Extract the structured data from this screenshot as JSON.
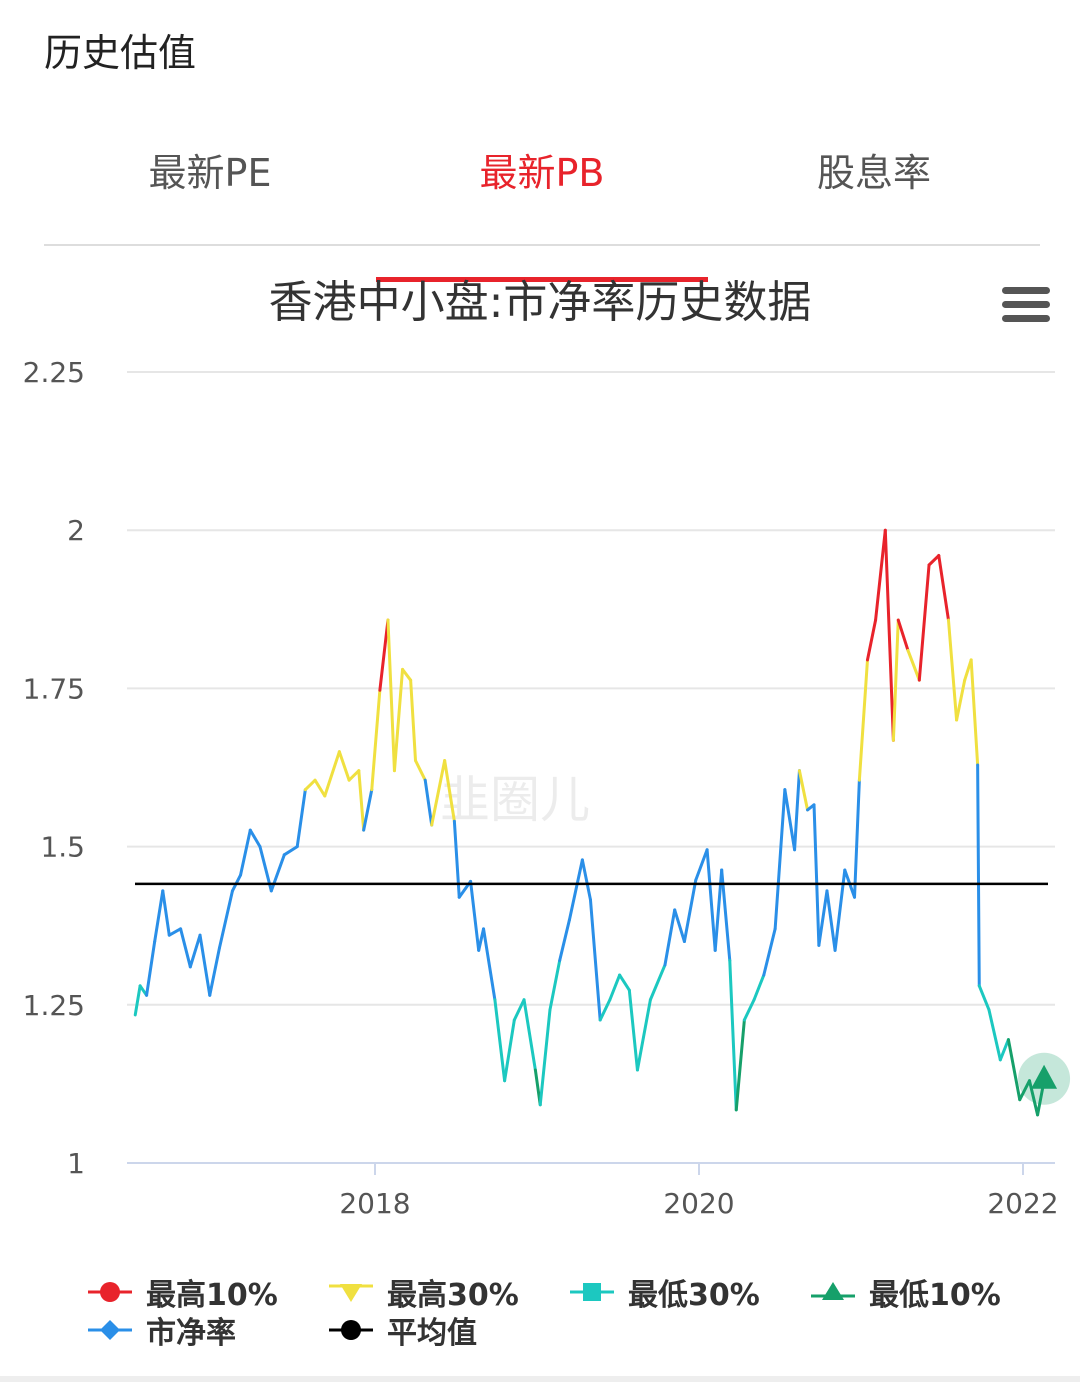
{
  "header": {
    "title": "历史估值"
  },
  "tabs": [
    {
      "label": "最新PE"
    },
    {
      "label": "最新PB",
      "active": true
    },
    {
      "label": "股息率"
    }
  ],
  "watermark": "韭圈儿",
  "colors": {
    "accent": "#e8232b",
    "top10": "#e8232b",
    "top30": "#f0e040",
    "low30": "#1cc8c0",
    "low10": "#16a06a",
    "pb": "#2a8fe8",
    "avg": "#000000"
  },
  "chart_data": {
    "type": "line",
    "title": "香港中小盘:市净率历史数据",
    "ylim": [
      1,
      2.25
    ],
    "yticks": [
      "1",
      "1.25",
      "1.5",
      "1.75",
      "2",
      "2.25"
    ],
    "xlim": [
      2016.45,
      2022.2
    ],
    "xticks": [
      "2018",
      "2020",
      "2022"
    ],
    "average": 1.441,
    "thresholds": {
      "top10": 1.79,
      "top30": 1.57,
      "low30": 1.29,
      "low10": 1.16
    },
    "legend": [
      {
        "label": "最高10%",
        "marker": "circle",
        "color": "#e8232b"
      },
      {
        "label": "最高30%",
        "marker": "triangle-down",
        "color": "#f0e040"
      },
      {
        "label": "最低30%",
        "marker": "square",
        "color": "#1cc8c0"
      },
      {
        "label": "最低10%",
        "marker": "triangle",
        "color": "#16a06a"
      },
      {
        "label": "市净率",
        "marker": "diamond",
        "color": "#2a8fe8"
      },
      {
        "label": "平均值",
        "marker": "circle",
        "color": "#000000"
      }
    ],
    "x": [
      2016.52,
      2016.55,
      2016.59,
      2016.64,
      2016.69,
      2016.73,
      2016.8,
      2016.86,
      2016.92,
      2016.98,
      2017.04,
      2017.12,
      2017.17,
      2017.23,
      2017.29,
      2017.36,
      2017.44,
      2017.52,
      2017.57,
      2017.63,
      2017.69,
      2017.78,
      2017.84,
      2017.9,
      2017.93,
      2017.98,
      2018.03,
      2018.08,
      2018.12,
      2018.17,
      2018.22,
      2018.25,
      2018.31,
      2018.35,
      2018.43,
      2018.49,
      2018.52,
      2018.59,
      2018.64,
      2018.67,
      2018.74,
      2018.8,
      2018.86,
      2018.92,
      2018.99,
      2019.02,
      2019.08,
      2019.14,
      2019.2,
      2019.28,
      2019.33,
      2019.39,
      2019.45,
      2019.51,
      2019.57,
      2019.62,
      2019.7,
      2019.79,
      2019.85,
      2019.91,
      2019.98,
      2020.05,
      2020.1,
      2020.14,
      2020.19,
      2020.23,
      2020.28,
      2020.34,
      2020.4,
      2020.47,
      2020.53,
      2020.59,
      2020.62,
      2020.67,
      2020.71,
      2020.74,
      2020.79,
      2020.84,
      2020.9,
      2020.96,
      2020.99,
      2021.04,
      2021.09,
      2021.15,
      2021.2,
      2021.23,
      2021.29,
      2021.36,
      2021.42,
      2021.48,
      2021.54,
      2021.59,
      2021.64,
      2021.68,
      2021.72,
      2021.73,
      2021.79,
      2021.86,
      2021.91,
      2021.98,
      2022.04,
      2022.09,
      2022.13
    ],
    "y": [
      1.234,
      1.28,
      1.265,
      1.35,
      1.43,
      1.36,
      1.37,
      1.31,
      1.36,
      1.265,
      1.34,
      1.43,
      1.455,
      1.526,
      1.5,
      1.43,
      1.487,
      1.5,
      1.59,
      1.605,
      1.58,
      1.65,
      1.605,
      1.62,
      1.526,
      1.59,
      1.747,
      1.858,
      1.62,
      1.78,
      1.763,
      1.636,
      1.605,
      1.534,
      1.636,
      1.54,
      1.42,
      1.445,
      1.336,
      1.37,
      1.258,
      1.13,
      1.226,
      1.258,
      1.147,
      1.092,
      1.242,
      1.32,
      1.384,
      1.479,
      1.416,
      1.226,
      1.258,
      1.297,
      1.273,
      1.147,
      1.258,
      1.313,
      1.4,
      1.35,
      1.447,
      1.495,
      1.336,
      1.463,
      1.32,
      1.084,
      1.226,
      1.258,
      1.297,
      1.37,
      1.59,
      1.495,
      1.62,
      1.558,
      1.566,
      1.344,
      1.43,
      1.336,
      1.463,
      1.42,
      1.605,
      1.795,
      1.858,
      2.0,
      1.668,
      1.858,
      1.81,
      1.763,
      1.945,
      1.96,
      1.858,
      1.7,
      1.763,
      1.795,
      1.629,
      1.28,
      1.242,
      1.163,
      1.195,
      1.1,
      1.13,
      1.076,
      1.13
    ]
  }
}
